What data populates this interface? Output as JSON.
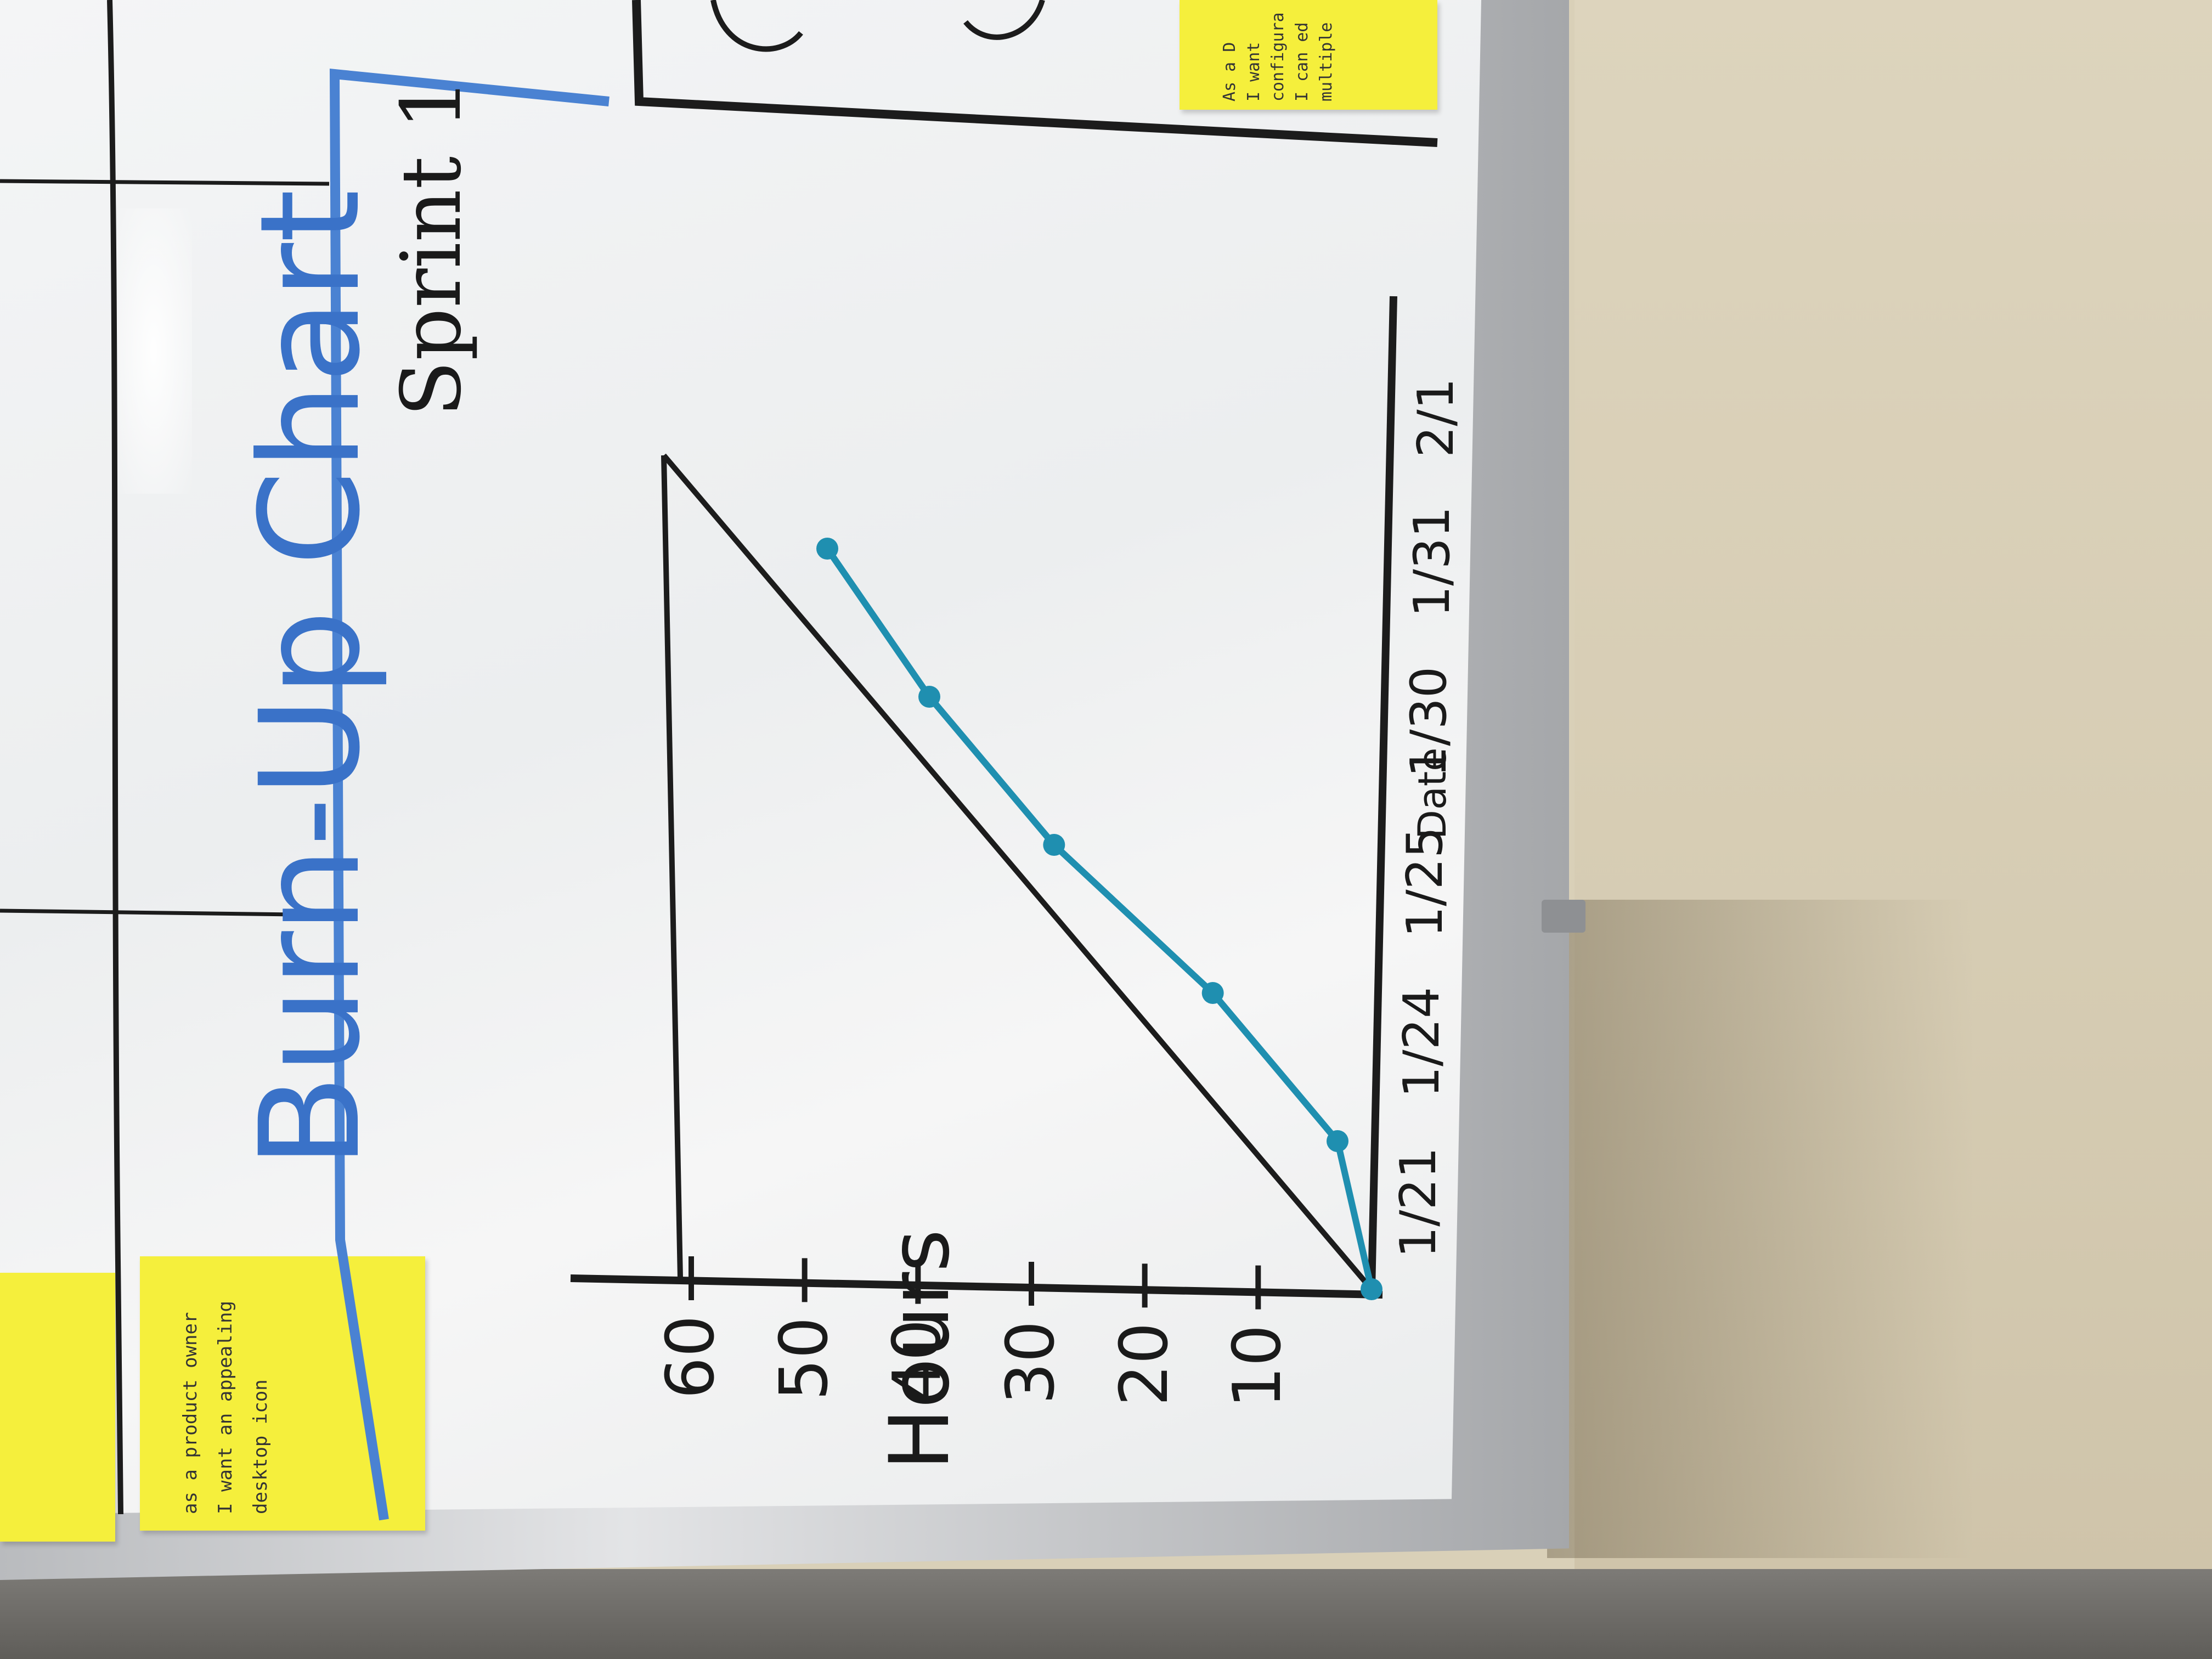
{
  "photo": {
    "subject": "Whiteboard burn-up chart",
    "title": "Burn-Up Chart",
    "sprint_label": "Sprint 1",
    "y_axis_label": "Hours",
    "x_axis_label": "Date",
    "sticky_notes": [
      {
        "id": "desktop-icon-story",
        "lines": [
          "as a product owner",
          "I want an appealing",
          "desktop icon"
        ]
      },
      {
        "id": "top-right-story",
        "lines": [
          "As a D",
          "I want",
          "configura",
          "I can ed",
          "multiple"
        ]
      }
    ]
  },
  "chart_data": {
    "type": "line",
    "title": "Burn-Up Chart",
    "subtitle": "Sprint 1",
    "xlabel": "Date",
    "ylabel": "Hours",
    "x_ticks": [
      "1/21",
      "1/24",
      "1/25",
      "1/30",
      "1/31",
      "2/1"
    ],
    "y_ticks": [
      "10",
      "20",
      "30",
      "40",
      "50",
      "60"
    ],
    "ylim": [
      0,
      60
    ],
    "colors": {
      "ideal": "#1c1c1c",
      "actual": "#1f8fb0",
      "title": "#3a72c8",
      "axes": "#1c1c1c"
    },
    "series": [
      {
        "values": [
          0,
          60
        ]
      },
      {
        "values": [
          0,
          3,
          14,
          28,
          39,
          48
        ]
      }
    ]
  }
}
